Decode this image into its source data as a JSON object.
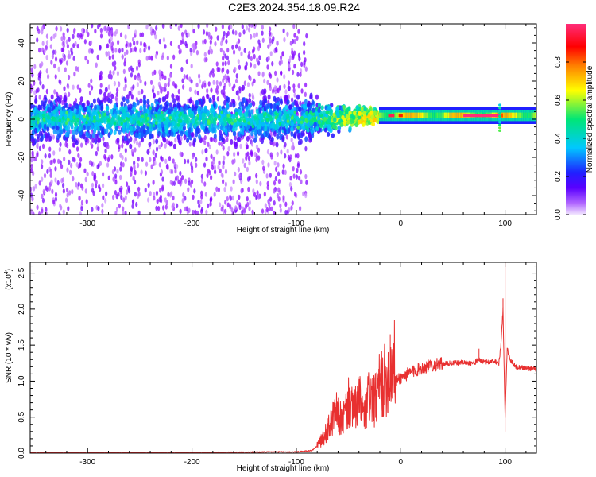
{
  "title": "C2E3.2024.354.18.09.R24",
  "chart_data": [
    {
      "type": "heatmap",
      "xlabel": "Height of straight line (km)",
      "ylabel": "Frequency (Hz)",
      "xlim": [
        -355,
        130
      ],
      "ylim": [
        -50,
        50
      ],
      "xticks": [
        -300,
        -200,
        -100,
        0,
        100
      ],
      "xtick_labels": [
        "-300",
        "-200",
        "-100",
        "0",
        "100"
      ],
      "yticks": [
        -40,
        -20,
        0,
        20,
        40
      ],
      "ytick_labels": [
        "-40",
        "-20",
        "0",
        "20",
        "40"
      ],
      "colorbar": {
        "label": "Normalized spectral amplitude",
        "range": [
          0,
          1
        ],
        "ticks": [
          0.0,
          0.2,
          0.4,
          0.6,
          0.8
        ],
        "tick_labels": [
          "0.0",
          "0.2",
          "0.4",
          "0.6",
          "0.8"
        ],
        "colormap": [
          "#f2e6ff",
          "#8a00ff",
          "#2020ff",
          "#00c8ff",
          "#00e676",
          "#ffff00",
          "#ff8000",
          "#ff0000",
          "#ff2d7a"
        ]
      },
      "band": {
        "description_values": "spectral energy concentrated near 0 Hz",
        "noise_region_x": [
          -355,
          -90
        ],
        "noise_band_halfwidth_hz": 10,
        "transition_x": [
          -90,
          -20
        ],
        "narrow_band_x": [
          -20,
          130
        ],
        "narrow_band_center_hz": 2,
        "peak_amplitude": 0.95
      }
    },
    {
      "type": "line",
      "xlabel": "Height of straight line (km)",
      "ylabel": "SNR (10 * v/v)",
      "multiplier_label": "(x10",
      "multiplier_exp": "4",
      "multiplier_close": ")",
      "xlim": [
        -355,
        130
      ],
      "ylim": [
        0,
        2.65
      ],
      "xticks": [
        -300,
        -200,
        -100,
        0,
        100
      ],
      "xtick_labels": [
        "-300",
        "-200",
        "-100",
        "0",
        "100"
      ],
      "yticks": [
        0.0,
        0.5,
        1.0,
        1.5,
        2.0,
        2.5
      ],
      "ytick_labels": [
        "0.0",
        "0.5",
        "1.0",
        "1.5",
        "2.0",
        "2.5"
      ],
      "series": [
        {
          "color": "#e83030",
          "x": [
            -355,
            -300,
            -200,
            -120,
            -100,
            -85,
            -75,
            -68,
            -62,
            -56,
            -50,
            -45,
            -40,
            -35,
            -30,
            -25,
            -20,
            -15,
            -12,
            -10,
            -8,
            -5,
            0,
            10,
            20,
            30,
            40,
            50,
            60,
            70,
            75,
            80,
            85,
            90,
            94,
            96,
            98,
            100,
            102,
            105,
            110,
            120,
            130
          ],
          "y": [
            0.0,
            0.0,
            0.0,
            0.01,
            0.01,
            0.03,
            0.15,
            0.3,
            0.45,
            0.35,
            0.55,
            0.45,
            0.6,
            0.4,
            0.65,
            0.55,
            0.75,
            0.8,
            0.85,
            0.9,
            0.95,
            1.0,
            1.05,
            1.12,
            1.18,
            1.22,
            1.24,
            1.25,
            1.26,
            1.25,
            1.3,
            1.26,
            1.27,
            1.28,
            1.25,
            1.5,
            2.0,
            0.5,
            1.45,
            1.3,
            1.2,
            1.18,
            1.17
          ]
        }
      ],
      "spikes": [
        {
          "x": -10,
          "y": 1.65
        },
        {
          "x": 100,
          "y": 2.65
        },
        {
          "x": 98,
          "y": 2.15
        },
        {
          "x": 100,
          "y": 0.3
        },
        {
          "x": 75,
          "y": 1.45
        }
      ]
    }
  ]
}
